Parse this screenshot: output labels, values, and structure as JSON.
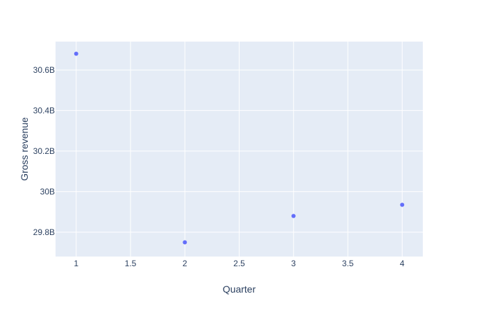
{
  "chart_data": {
    "type": "scatter",
    "title": "",
    "xlabel": "Quarter",
    "ylabel": "Gross revenue",
    "x": [
      1,
      2,
      3,
      4
    ],
    "y": [
      30680000000,
      29750000000,
      29880000000,
      29935000000
    ],
    "xlim": [
      0.81,
      4.19
    ],
    "ylim": [
      29680000000,
      30740000000
    ],
    "xticks": [
      1,
      1.5,
      2,
      2.5,
      3,
      3.5,
      4
    ],
    "xtick_labels": [
      "1",
      "1.5",
      "2",
      "2.5",
      "3",
      "3.5",
      "4"
    ],
    "yticks": [
      29800000000,
      30000000000,
      30200000000,
      30400000000,
      30600000000
    ],
    "ytick_labels": [
      "29.8B",
      "30B",
      "30.2B",
      "30.4B",
      "30.6B"
    ],
    "grid": true,
    "colors": {
      "marker": "#636efa",
      "plot_background": "#e5ecf6",
      "grid": "#ffffff",
      "text": "#2a3f5f"
    }
  }
}
